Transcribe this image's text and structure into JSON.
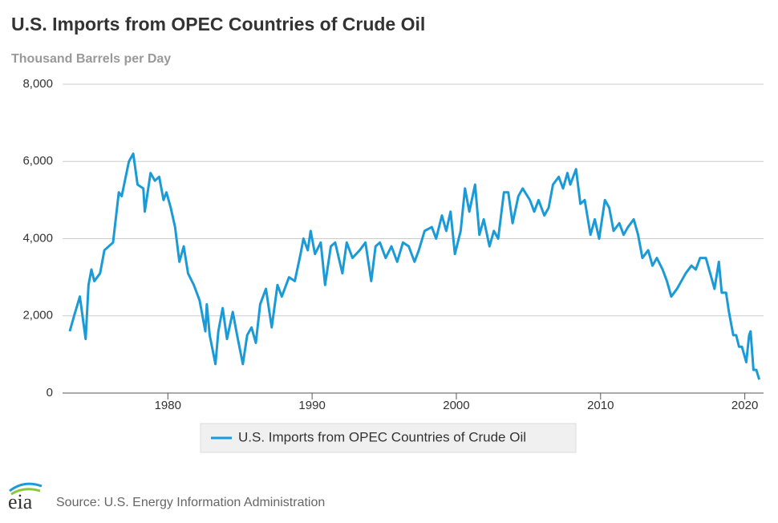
{
  "chart_data": {
    "type": "line",
    "title": "U.S. Imports from OPEC Countries of Crude Oil",
    "y_axis_label": "Thousand Barrels per Day",
    "source": "Source: U.S. Energy Information Administration",
    "logo_text": "eia",
    "legend_position": "bottom",
    "grid": true,
    "xlim": [
      1972.7,
      2021.3
    ],
    "xticks": [
      1980,
      1990,
      2000,
      2010,
      2020
    ],
    "ylim": [
      0,
      8000
    ],
    "yticks": [
      0,
      {
        "value": 2000,
        "label": "2,000"
      },
      {
        "value": 4000,
        "label": "4,000"
      },
      {
        "value": 6000,
        "label": "6,000"
      },
      {
        "value": 8000,
        "label": "8,000"
      }
    ],
    "x": [
      1973.2,
      1973.5,
      1973.9,
      1974.3,
      1974.5,
      1974.7,
      1974.9,
      1975.3,
      1975.6,
      1976.2,
      1976.6,
      1976.8,
      1977.3,
      1977.6,
      1977.9,
      1978.3,
      1978.4,
      1978.8,
      1979.1,
      1979.4,
      1979.7,
      1979.9,
      1980.2,
      1980.5,
      1980.8,
      1981.1,
      1981.4,
      1981.8,
      1982.2,
      1982.6,
      1982.7,
      1982.9,
      1983.3,
      1983.5,
      1983.8,
      1984.1,
      1984.5,
      1984.8,
      1985.2,
      1985.5,
      1985.8,
      1986.1,
      1986.4,
      1986.8,
      1987.2,
      1987.6,
      1987.9,
      1988.4,
      1988.8,
      1989.2,
      1989.4,
      1989.7,
      1989.9,
      1990.2,
      1990.6,
      1990.9,
      1991.3,
      1991.6,
      1992.1,
      1992.4,
      1992.8,
      1993.3,
      1993.7,
      1994.1,
      1994.4,
      1994.7,
      1995.1,
      1995.5,
      1995.9,
      1996.3,
      1996.7,
      1997.1,
      1997.4,
      1997.8,
      1998.3,
      1998.6,
      1999.0,
      1999.3,
      1999.6,
      1999.9,
      2000.3,
      2000.6,
      2000.9,
      2001.3,
      2001.6,
      2001.9,
      2002.3,
      2002.6,
      2002.9,
      2003.3,
      2003.6,
      2003.9,
      2004.3,
      2004.6,
      2005.1,
      2005.4,
      2005.7,
      2006.1,
      2006.4,
      2006.7,
      2007.1,
      2007.4,
      2007.7,
      2007.9,
      2008.3,
      2008.6,
      2008.9,
      2009.3,
      2009.6,
      2009.9,
      2010.3,
      2010.6,
      2010.9,
      2011.3,
      2011.6,
      2011.9,
      2012.3,
      2012.6,
      2012.9,
      2013.3,
      2013.6,
      2013.9,
      2014.3,
      2014.6,
      2014.9,
      2015.3,
      2015.6,
      2015.9,
      2016.3,
      2016.6,
      2016.9,
      2017.3,
      2017.6,
      2017.9,
      2018.2,
      2018.4,
      2018.7,
      2018.9,
      2019.2,
      2019.4,
      2019.6,
      2019.8,
      2020.1,
      2020.3,
      2020.4,
      2020.6,
      2020.8,
      2021.0
    ],
    "series": [
      {
        "name": "U.S. Imports from OPEC Countries of Crude Oil",
        "color": "#1a9ad6",
        "values": [
          1600,
          2000,
          2500,
          1400,
          2800,
          3200,
          2900,
          3100,
          3700,
          3900,
          5200,
          5100,
          6000,
          6200,
          5400,
          5300,
          4700,
          5700,
          5500,
          5600,
          5000,
          5200,
          4800,
          4300,
          3400,
          3800,
          3100,
          2800,
          2400,
          1600,
          2300,
          1500,
          750,
          1600,
          2200,
          1400,
          2100,
          1500,
          750,
          1500,
          1700,
          1300,
          2300,
          2700,
          1700,
          2800,
          2500,
          3000,
          2900,
          3600,
          4000,
          3700,
          4200,
          3600,
          3900,
          2800,
          3800,
          3900,
          3100,
          3900,
          3500,
          3700,
          3900,
          2900,
          3800,
          3900,
          3500,
          3800,
          3400,
          3900,
          3800,
          3400,
          3700,
          4200,
          4300,
          4000,
          4600,
          4200,
          4700,
          3600,
          4200,
          5300,
          4700,
          5400,
          4100,
          4500,
          3800,
          4200,
          4000,
          5200,
          5200,
          4400,
          5100,
          5300,
          5000,
          4700,
          5000,
          4600,
          4800,
          5400,
          5600,
          5300,
          5700,
          5400,
          5800,
          4900,
          5000,
          4100,
          4500,
          4000,
          5000,
          4800,
          4200,
          4400,
          4100,
          4300,
          4500,
          4100,
          3500,
          3700,
          3300,
          3500,
          3200,
          2900,
          2500,
          2700,
          2900,
          3100,
          3300,
          3200,
          3500,
          3500,
          3100,
          2700,
          3400,
          2600,
          2600,
          2100,
          1500,
          1500,
          1200,
          1200,
          800,
          1500,
          1600,
          600,
          600,
          350
        ]
      }
    ]
  }
}
